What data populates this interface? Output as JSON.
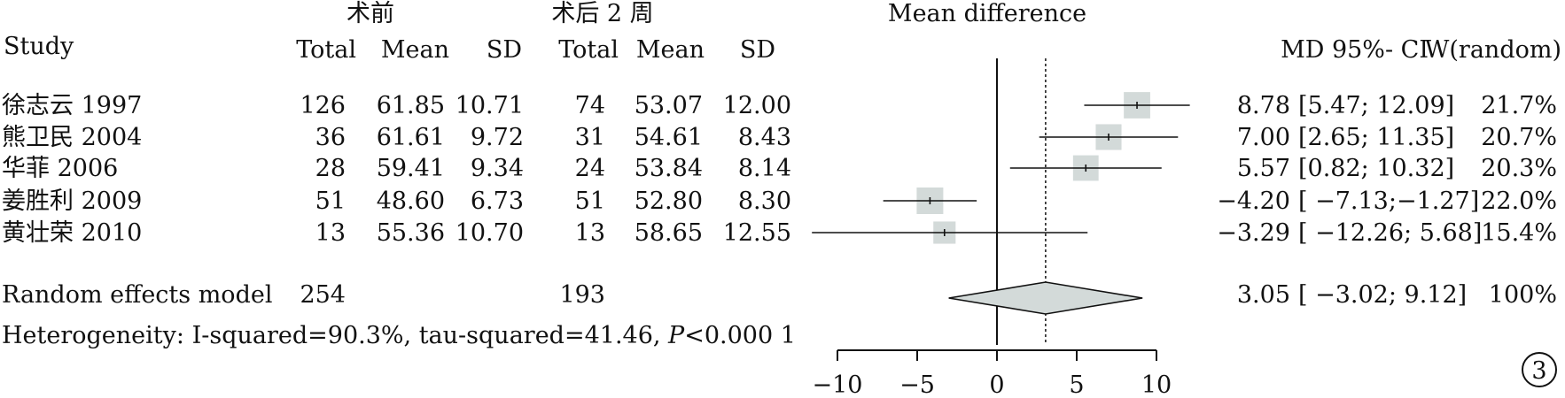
{
  "headers": {
    "group1": "术前",
    "group2": "术后 2 周",
    "plot_title": "Mean difference",
    "study": "Study",
    "total1": "Total",
    "mean1": "Mean",
    "sd1": "SD",
    "total2": "Total",
    "mean2": "Mean",
    "sd2": "SD",
    "md_ci": "MD  95%- CI",
    "weight": "W(random)"
  },
  "studies": [
    {
      "name": "徐志云 1997",
      "total1": "126",
      "mean1": "61.85",
      "sd1": "10.71",
      "total2": "74",
      "mean2": "53.07",
      "sd2": "12.00",
      "md_text": "8.78",
      "ci_text": "[5.47; 12.09]",
      "weight_text": "21.7%"
    },
    {
      "name": "熊卫民 2004",
      "total1": "36",
      "mean1": "61.61",
      "sd1": "9.72",
      "total2": "31",
      "mean2": "54.61",
      "sd2": "8.43",
      "md_text": "7.00",
      "ci_text": "[2.65; 11.35]",
      "weight_text": "20.7%"
    },
    {
      "name": "华菲 2006",
      "total1": "28",
      "mean1": "59.41",
      "sd1": "9.34",
      "total2": "24",
      "mean2": "53.84",
      "sd2": "8.14",
      "md_text": "5.57",
      "ci_text": "[0.82; 10.32]",
      "weight_text": "20.3%"
    },
    {
      "name": "姜胜利 2009",
      "total1": "51",
      "mean1": "48.60",
      "sd1": "6.73",
      "total2": "51",
      "mean2": "52.80",
      "sd2": "8.30",
      "md_text": "−4.20",
      "ci_text": "[ −7.13;−1.27]",
      "weight_text": "22.0%"
    },
    {
      "name": "黄壮荣 2010",
      "total1": "13",
      "mean1": "55.36",
      "sd1": "10.70",
      "total2": "13",
      "mean2": "58.65",
      "sd2": "12.55",
      "md_text": "−3.29",
      "ci_text": "[ −12.26;  5.68]",
      "weight_text": "15.4%"
    }
  ],
  "summary": {
    "label": "Random effects model",
    "total1": "254",
    "total2": "193",
    "md_text": "3.05",
    "ci_text": "[ −3.02;  9.12]",
    "weight_text": "100%"
  },
  "heterogeneity": {
    "prefix": "Heterogeneity: I-squared=90.3%, tau-squared=41.46, ",
    "p_symbol": "P",
    "suffix": "<0.000  1"
  },
  "figure_number": "3",
  "chart_data": {
    "type": "forest",
    "measure": "Mean difference",
    "xlim": [
      -10,
      10
    ],
    "ticks": [
      -10,
      -5,
      0,
      5,
      10
    ],
    "tick_labels": [
      "−10",
      "−5",
      "0",
      "5",
      "10"
    ],
    "null_line": 0,
    "studies": [
      {
        "name": "徐志云 1997",
        "md": 8.78,
        "lower": 5.47,
        "upper": 12.09,
        "weight": 21.7
      },
      {
        "name": "熊卫民 2004",
        "md": 7.0,
        "lower": 2.65,
        "upper": 11.35,
        "weight": 20.7
      },
      {
        "name": "华菲 2006",
        "md": 5.57,
        "lower": 0.82,
        "upper": 10.32,
        "weight": 20.3
      },
      {
        "name": "姜胜利 2009",
        "md": -4.2,
        "lower": -7.13,
        "upper": -1.27,
        "weight": 22.0
      },
      {
        "name": "黄壮荣 2010",
        "md": -3.29,
        "lower": -12.26,
        "upper": 5.68,
        "weight": 15.4
      }
    ],
    "pooled": {
      "name": "Random effects model",
      "md": 3.05,
      "lower": -3.02,
      "upper": 9.12,
      "weight": 100
    },
    "colors": {
      "box": "#d3dad9",
      "line": "#111111",
      "diamond": "#d3dad9"
    }
  }
}
